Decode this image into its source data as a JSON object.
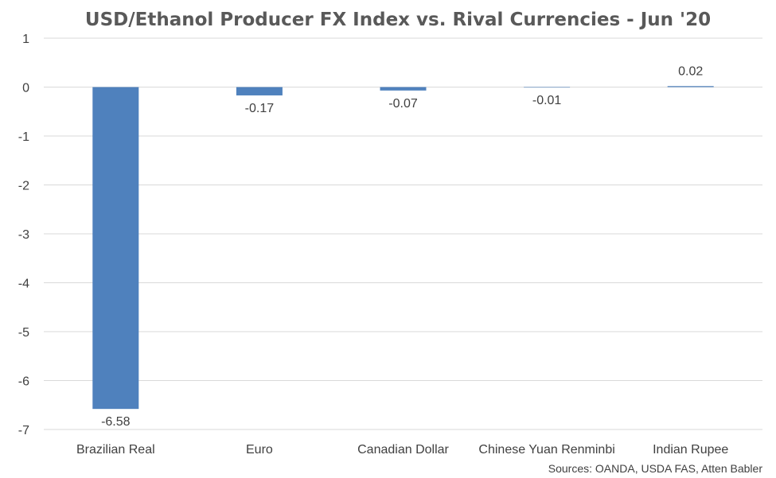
{
  "chart_data": {
    "type": "bar",
    "title": "USD/Ethanol Producer FX Index vs. Rival Currencies - Jun '20",
    "xlabel": "",
    "ylabel": "",
    "categories": [
      "Brazilian Real",
      "Euro",
      "Canadian Dollar",
      "Chinese Yuan Renminbi",
      "Indian Rupee"
    ],
    "values": [
      -6.58,
      -0.17,
      -0.07,
      -0.01,
      0.02
    ],
    "data_labels": [
      "-6.58",
      "-0.17",
      "-0.07",
      "-0.01",
      "0.02"
    ],
    "ylim": [
      -7,
      1
    ],
    "yticks": [
      1,
      0,
      -1,
      -2,
      -3,
      -4,
      -5,
      -6,
      -7
    ],
    "grid": true,
    "legend": "none",
    "bar_color": "#4f81bd",
    "source": "Sources: OANDA, USDA FAS, Atten Babler"
  }
}
